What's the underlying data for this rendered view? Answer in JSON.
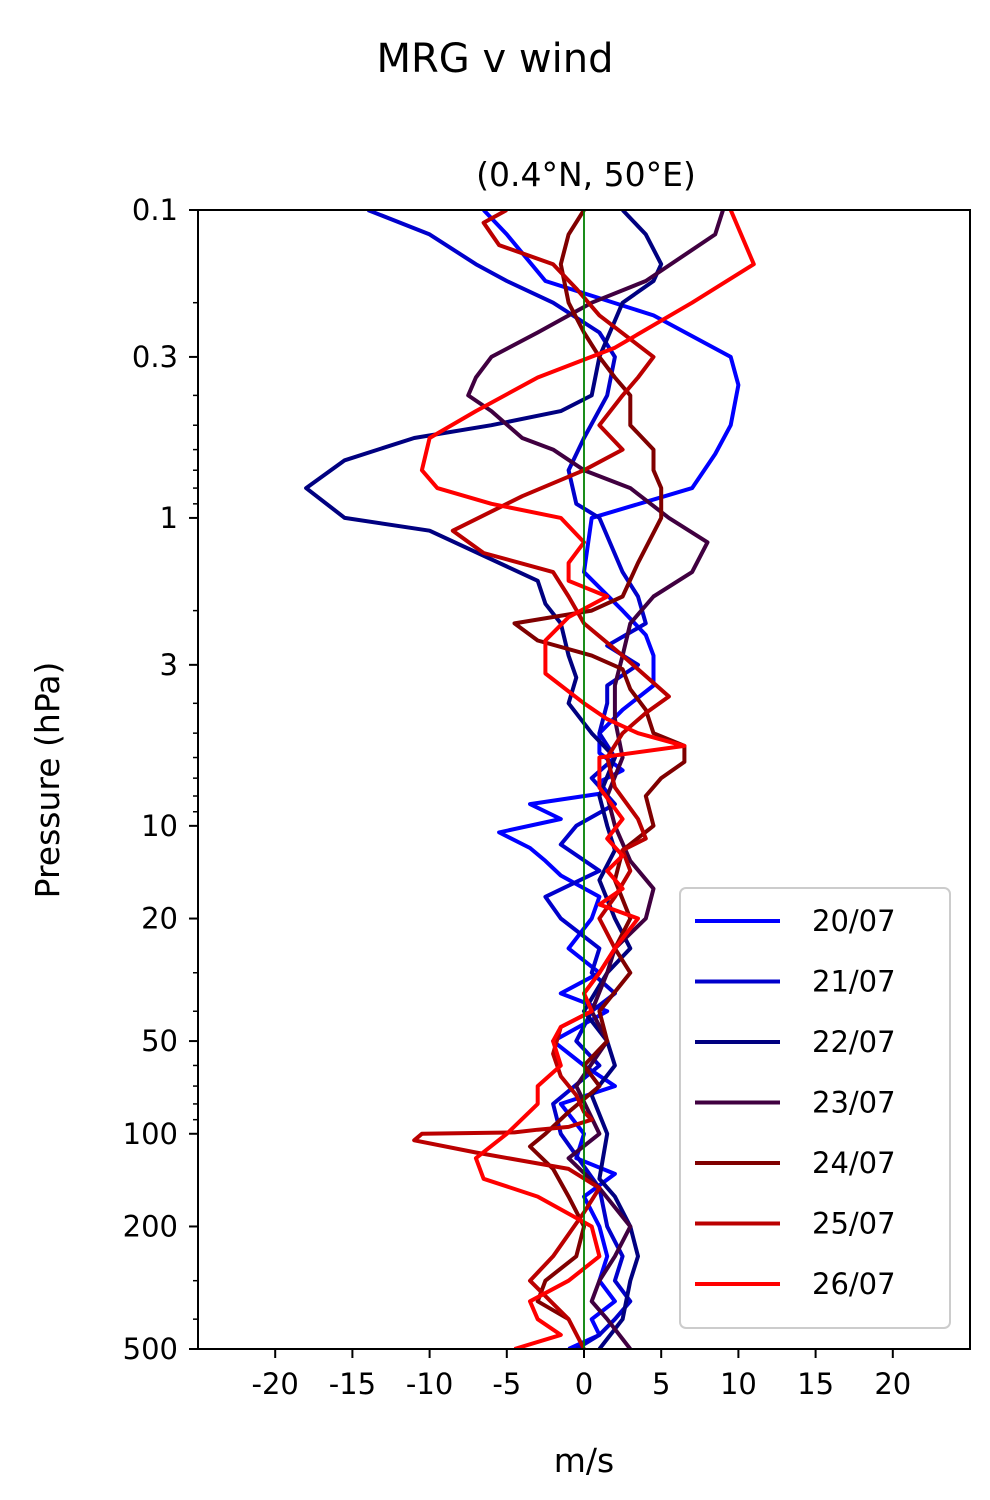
{
  "chart_data": {
    "type": "line",
    "title": "MRG v wind",
    "subtitle": "(0.4°N, 50°E)",
    "xlabel": "m/s",
    "ylabel": "Pressure (hPa)",
    "xlim": [
      -25,
      25
    ],
    "ylim": [
      500,
      0.1
    ],
    "yscale": "log",
    "y_inverted": true,
    "xticks": [
      -20,
      -15,
      -10,
      -5,
      0,
      5,
      10,
      15,
      20
    ],
    "xtick_labels": [
      "-20",
      "-15",
      "-10",
      "-5",
      "0",
      "5",
      "10",
      "15",
      "20"
    ],
    "yticks": [
      0.1,
      0.3,
      1,
      3,
      10,
      20,
      50,
      100,
      200,
      500
    ],
    "ytick_labels": [
      "0.1",
      "0.3",
      "1",
      "3",
      "10",
      "20",
      "50",
      "100",
      "200",
      "500"
    ],
    "zero_line_color": "#008000",
    "grid": false,
    "legend_position": "lower right",
    "series": [
      {
        "name": "20/07",
        "color": "#0000ff",
        "x": [
          -6.5,
          -5,
          -2.5,
          4.5,
          9.5,
          10,
          9.5,
          8.5,
          7,
          0.5,
          0,
          2.5,
          4,
          4.5,
          4.5,
          2.5,
          1,
          1,
          2.5,
          1,
          1.5,
          -3.5,
          -1.5,
          -5.5,
          -3.5,
          -2.5,
          -1.5,
          1,
          0.5,
          -1,
          1,
          -1.5,
          1.5,
          -2,
          0,
          2,
          -1.5,
          0,
          -0.5,
          2,
          0,
          1,
          1.5,
          1,
          2,
          0.5,
          1,
          -1
        ],
        "y": [
          0.1,
          0.12,
          0.17,
          0.22,
          0.3,
          0.37,
          0.5,
          0.62,
          0.8,
          1.0,
          1.5,
          2.0,
          2.4,
          2.8,
          3.5,
          4.2,
          5.0,
          5.8,
          6.6,
          7.2,
          7.8,
          8.5,
          9.5,
          10.5,
          11.8,
          13,
          14.5,
          17,
          20,
          25,
          30,
          35,
          40,
          50,
          60,
          70,
          80,
          100,
          120,
          135,
          160,
          200,
          250,
          300,
          350,
          400,
          450,
          500
        ]
      },
      {
        "name": "21/07",
        "color": "#0000cc",
        "x": [
          -14,
          -10,
          -7,
          -5,
          -2,
          1,
          2,
          1.5,
          0,
          -1,
          -0.5,
          1,
          2.5,
          3.5,
          4,
          1.5,
          3.5,
          1.5,
          1.5,
          1,
          2,
          0.5,
          2,
          -0.5,
          -1.5,
          1,
          -2.5,
          -1.5,
          1,
          0.5,
          2,
          0.5,
          -0.5,
          1,
          -2,
          -1.5,
          1,
          1.5,
          2.5,
          2,
          3,
          2,
          1,
          -0.5
        ],
        "y": [
          0.1,
          0.12,
          0.15,
          0.17,
          0.2,
          0.25,
          0.3,
          0.4,
          0.55,
          0.7,
          0.9,
          1.0,
          1.5,
          1.8,
          2.2,
          2.6,
          3.0,
          3.5,
          4.0,
          5.0,
          6.0,
          7.0,
          8.5,
          10,
          11.5,
          14,
          17,
          20,
          25,
          30,
          35,
          40,
          50,
          60,
          80,
          100,
          150,
          200,
          250,
          300,
          350,
          400,
          450,
          500
        ]
      },
      {
        "name": "22/07",
        "color": "#000080",
        "x": [
          2.5,
          4,
          5,
          4.5,
          2.5,
          1,
          0.5,
          -1.5,
          -6,
          -11,
          -15.5,
          -18,
          -15.5,
          -10,
          -3,
          -2.5,
          -1.5,
          -1,
          -0.5,
          -1,
          0.5,
          2,
          1,
          1.5,
          2,
          1,
          2,
          3,
          1.5,
          0,
          1.5,
          2,
          0.5,
          1.5,
          1,
          2,
          3,
          3.5,
          3,
          2.5,
          1
        ],
        "y": [
          0.1,
          0.12,
          0.15,
          0.17,
          0.2,
          0.3,
          0.4,
          0.45,
          0.5,
          0.55,
          0.65,
          0.8,
          1.0,
          1.1,
          1.6,
          1.9,
          2.2,
          2.8,
          3.3,
          4.0,
          5.0,
          6.0,
          8.0,
          10,
          12,
          15,
          20,
          25,
          30,
          40,
          50,
          60,
          75,
          100,
          140,
          160,
          200,
          250,
          300,
          400,
          500
        ]
      },
      {
        "name": "23/07",
        "color": "#400040",
        "x": [
          9,
          8.5,
          4,
          0.5,
          -3,
          -6,
          -7,
          -7.5,
          -6,
          -4,
          -2,
          0,
          3,
          5.5,
          8,
          7,
          4.5,
          3,
          2.5,
          2,
          2,
          2.5,
          1.5,
          2,
          3,
          4.5,
          4,
          2,
          1.5,
          0.5,
          1.5,
          -0.5,
          1,
          -1,
          1,
          3,
          2,
          1,
          0.5,
          1.5,
          3
        ],
        "y": [
          0.1,
          0.12,
          0.17,
          0.2,
          0.25,
          0.3,
          0.35,
          0.4,
          0.45,
          0.55,
          0.6,
          0.7,
          0.8,
          1.0,
          1.2,
          1.5,
          1.8,
          2.2,
          2.8,
          3.5,
          4.5,
          6.0,
          8.0,
          10,
          13,
          16,
          20,
          25,
          30,
          40,
          50,
          70,
          100,
          120,
          150,
          200,
          250,
          300,
          350,
          400,
          500
        ]
      },
      {
        "name": "24/07",
        "color": "#800000",
        "x": [
          0,
          -1,
          -1.5,
          -1,
          0,
          1,
          2,
          3,
          3,
          4.5,
          4.5,
          5,
          5,
          3.5,
          2.5,
          0.5,
          -4.5,
          -3,
          0.5,
          2.5,
          3,
          4,
          4.5,
          6.5,
          6.5,
          5,
          4,
          4.5,
          2.5,
          2,
          3,
          2,
          3,
          1,
          1.5,
          0,
          1,
          -1,
          -2.5,
          -3.5,
          -2,
          -1,
          0,
          -0.5,
          -2.5,
          -3,
          -1
        ],
        "y": [
          0.1,
          0.12,
          0.15,
          0.2,
          0.25,
          0.3,
          0.35,
          0.4,
          0.5,
          0.6,
          0.7,
          0.8,
          1.0,
          1.4,
          1.8,
          2.0,
          2.2,
          2.5,
          2.8,
          3.1,
          3.6,
          4.2,
          5.0,
          5.5,
          6.2,
          7.0,
          8.0,
          10,
          12,
          15,
          20,
          25,
          30,
          40,
          50,
          60,
          70,
          85,
          100,
          110,
          130,
          160,
          200,
          250,
          300,
          350,
          400
        ]
      },
      {
        "name": "25/07",
        "color": "#bb0000",
        "x": [
          -5,
          -6.5,
          -5.5,
          -2,
          -0.5,
          1,
          4.5,
          3.5,
          2.5,
          1,
          2.5,
          0,
          -4,
          -8.5,
          -6.5,
          -2,
          -1,
          0,
          2.5,
          5.5,
          4,
          2.5,
          1.5,
          2,
          3.5,
          4,
          2.5,
          3,
          2,
          1,
          2,
          1,
          0,
          0.5,
          -1.5,
          -2,
          -1.5,
          -0.5,
          0,
          0.5,
          -1,
          -3,
          -4.5,
          -10.5,
          -11,
          -7,
          -1,
          1,
          0,
          -2,
          -3.5,
          -1,
          0
        ],
        "y": [
          0.1,
          0.11,
          0.13,
          0.15,
          0.18,
          0.22,
          0.3,
          0.35,
          0.4,
          0.5,
          0.6,
          0.7,
          0.85,
          1.1,
          1.3,
          1.5,
          1.8,
          2.2,
          2.8,
          3.8,
          4.3,
          5.0,
          6.0,
          7.5,
          9.5,
          11,
          12,
          14,
          17,
          20,
          25,
          30,
          35,
          40,
          45,
          55,
          65,
          75,
          85,
          90,
          95,
          97,
          99,
          100,
          105,
          115,
          130,
          150,
          180,
          250,
          300,
          400,
          500
        ]
      },
      {
        "name": "26/07",
        "color": "#ff0000",
        "x": [
          9.5,
          11,
          7,
          2,
          -3,
          -7,
          -10,
          -10.5,
          -9.5,
          -6,
          -1.5,
          0,
          -1,
          -1,
          1.5,
          -1,
          -2.5,
          -2.5,
          0,
          1.5,
          3.5,
          6.5,
          1,
          1,
          2.5,
          1.5,
          2.5,
          1.5,
          2.5,
          1,
          3.5,
          2,
          1,
          0,
          0.5,
          -1.5,
          -2,
          -1.5,
          -3,
          -3,
          -5,
          -7,
          -6.5,
          -3,
          0.5,
          1,
          -1,
          -3.5,
          -3,
          -1.5,
          -4.5
        ],
        "y": [
          0.1,
          0.15,
          0.2,
          0.28,
          0.35,
          0.45,
          0.55,
          0.7,
          0.8,
          0.9,
          1.0,
          1.2,
          1.4,
          1.6,
          1.8,
          2.1,
          2.5,
          3.2,
          4.0,
          4.5,
          5.0,
          5.5,
          6.0,
          7.5,
          9.5,
          11,
          12.5,
          14,
          16,
          18,
          20,
          25,
          30,
          35,
          40,
          45,
          50,
          60,
          70,
          80,
          100,
          120,
          140,
          160,
          200,
          250,
          300,
          350,
          400,
          450,
          500
        ]
      }
    ]
  }
}
